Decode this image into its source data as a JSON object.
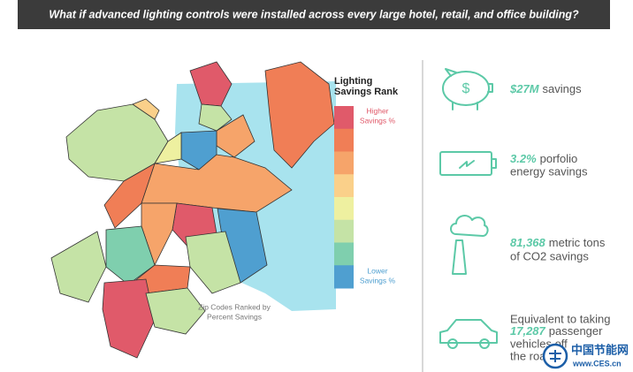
{
  "header": {
    "title": "What if advanced lighting controls were installed across every large hotel, retail, and office building?"
  },
  "legend": {
    "title_lines": [
      "Lighting",
      "Savings Rank"
    ],
    "higher_lines": [
      "Higher",
      "Savings %"
    ],
    "lower_lines": [
      "Lower",
      "Savings %"
    ],
    "colors": [
      "#e05a6a",
      "#f07e56",
      "#f6a46a",
      "#fad08a",
      "#eef0a0",
      "#c5e3a6",
      "#7fcfae",
      "#4f9fd0"
    ]
  },
  "map": {
    "caption_lines": [
      "Zip Codes Ranked by",
      "Percent Savings"
    ]
  },
  "stats": [
    {
      "highlight": "$27M",
      "lines": [
        "savings"
      ]
    },
    {
      "highlight": "3.2%",
      "lines": [
        "porfolio",
        "energy savings"
      ]
    },
    {
      "highlight": "81,368",
      "lines": [
        "metric tons",
        "of CO2 savings"
      ]
    },
    {
      "lead": "Equivalent to taking",
      "highlight": "17,287",
      "lines": [
        "passenger",
        "vehicles off",
        "the road"
      ]
    }
  ],
  "watermark": {
    "name": "中国节能网",
    "url": "www.CES.cn"
  }
}
